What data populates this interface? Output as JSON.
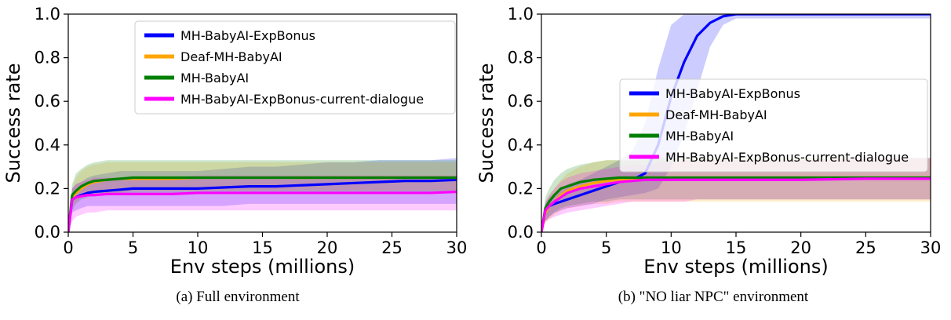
{
  "captions": [
    "(a) Full environment",
    "(b) \"NO liar NPC\" environment"
  ],
  "chart_data": [
    {
      "type": "line",
      "title": "",
      "xlabel": "Env steps (millions)",
      "ylabel": "Success rate",
      "xlim": [
        0,
        30
      ],
      "ylim": [
        0,
        1.0
      ],
      "xticks": [
        "0",
        "5",
        "10",
        "15",
        "20",
        "25",
        "30"
      ],
      "yticks": [
        "0.0",
        "0.2",
        "0.4",
        "0.6",
        "0.8",
        "1.0"
      ],
      "grid": false,
      "legend_position": "top-right",
      "x": [
        0,
        0.3,
        0.6,
        1,
        1.5,
        2,
        3,
        4,
        5,
        6,
        7,
        8,
        10,
        12,
        14,
        16,
        18,
        20,
        22,
        24,
        26,
        28,
        30
      ],
      "series": [
        {
          "name": "MH-BabyAI-ExpBonus",
          "color": "#0000ff",
          "values": [
            0.0,
            0.15,
            0.16,
            0.17,
            0.18,
            0.185,
            0.19,
            0.195,
            0.2,
            0.2,
            0.2,
            0.2,
            0.2,
            0.205,
            0.21,
            0.21,
            0.215,
            0.22,
            0.225,
            0.23,
            0.235,
            0.235,
            0.24
          ],
          "lower": [
            0.0,
            0.09,
            0.1,
            0.11,
            0.12,
            0.12,
            0.12,
            0.12,
            0.12,
            0.12,
            0.12,
            0.12,
            0.12,
            0.12,
            0.13,
            0.13,
            0.13,
            0.13,
            0.13,
            0.13,
            0.13,
            0.13,
            0.13
          ],
          "upper": [
            0.0,
            0.2,
            0.22,
            0.23,
            0.25,
            0.26,
            0.27,
            0.28,
            0.28,
            0.28,
            0.28,
            0.28,
            0.28,
            0.29,
            0.3,
            0.3,
            0.31,
            0.32,
            0.32,
            0.33,
            0.33,
            0.33,
            0.34
          ]
        },
        {
          "name": "Deaf-MH-BabyAI",
          "color": "#ffa500",
          "values": [
            0.0,
            0.16,
            0.18,
            0.2,
            0.22,
            0.23,
            0.24,
            0.245,
            0.245,
            0.245,
            0.245,
            0.245,
            0.25,
            0.25,
            0.25,
            0.25,
            0.25,
            0.25,
            0.25,
            0.25,
            0.25,
            0.25,
            0.25
          ],
          "lower": [
            0.0,
            0.12,
            0.14,
            0.16,
            0.17,
            0.18,
            0.18,
            0.18,
            0.19,
            0.19,
            0.19,
            0.19,
            0.19,
            0.19,
            0.19,
            0.19,
            0.19,
            0.19,
            0.19,
            0.19,
            0.19,
            0.19,
            0.19
          ],
          "upper": [
            0.0,
            0.2,
            0.25,
            0.28,
            0.3,
            0.31,
            0.32,
            0.32,
            0.32,
            0.32,
            0.32,
            0.32,
            0.32,
            0.32,
            0.32,
            0.32,
            0.32,
            0.32,
            0.32,
            0.32,
            0.32,
            0.32,
            0.32
          ]
        },
        {
          "name": "MH-BabyAI",
          "color": "#008000",
          "values": [
            0.0,
            0.17,
            0.19,
            0.21,
            0.225,
            0.235,
            0.24,
            0.245,
            0.25,
            0.25,
            0.25,
            0.25,
            0.25,
            0.25,
            0.25,
            0.25,
            0.25,
            0.25,
            0.25,
            0.25,
            0.25,
            0.25,
            0.25
          ],
          "lower": [
            0.0,
            0.1,
            0.13,
            0.15,
            0.16,
            0.17,
            0.18,
            0.18,
            0.18,
            0.18,
            0.18,
            0.18,
            0.18,
            0.18,
            0.18,
            0.18,
            0.18,
            0.18,
            0.18,
            0.18,
            0.18,
            0.18,
            0.18
          ],
          "upper": [
            0.0,
            0.22,
            0.27,
            0.29,
            0.31,
            0.32,
            0.33,
            0.33,
            0.33,
            0.33,
            0.33,
            0.33,
            0.33,
            0.33,
            0.33,
            0.33,
            0.33,
            0.33,
            0.33,
            0.33,
            0.33,
            0.33,
            0.33
          ]
        },
        {
          "name": "MH-BabyAI-ExpBonus-current-dialogue",
          "color": "#ff00ff",
          "values": [
            0.0,
            0.15,
            0.16,
            0.165,
            0.17,
            0.17,
            0.175,
            0.175,
            0.175,
            0.175,
            0.175,
            0.175,
            0.18,
            0.18,
            0.18,
            0.18,
            0.18,
            0.18,
            0.18,
            0.18,
            0.18,
            0.18,
            0.185
          ],
          "lower": [
            0.0,
            0.05,
            0.07,
            0.08,
            0.09,
            0.09,
            0.1,
            0.1,
            0.1,
            0.1,
            0.1,
            0.1,
            0.1,
            0.1,
            0.1,
            0.1,
            0.1,
            0.1,
            0.1,
            0.1,
            0.1,
            0.1,
            0.1
          ],
          "upper": [
            0.0,
            0.2,
            0.22,
            0.23,
            0.24,
            0.25,
            0.25,
            0.25,
            0.25,
            0.25,
            0.25,
            0.25,
            0.26,
            0.26,
            0.26,
            0.26,
            0.26,
            0.26,
            0.26,
            0.26,
            0.26,
            0.26,
            0.26
          ]
        }
      ]
    },
    {
      "type": "line",
      "title": "",
      "xlabel": "Env steps (millions)",
      "ylabel": "Success rate",
      "xlim": [
        0,
        30
      ],
      "ylim": [
        0,
        1.0
      ],
      "xticks": [
        "0",
        "5",
        "10",
        "15",
        "20",
        "25",
        "30"
      ],
      "yticks": [
        "0.0",
        "0.2",
        "0.4",
        "0.6",
        "0.8",
        "1.0"
      ],
      "grid": false,
      "legend_position": "center-right",
      "x": [
        0,
        0.3,
        0.6,
        1,
        1.5,
        2,
        3,
        4,
        5,
        6,
        7,
        8,
        9,
        10,
        11,
        12,
        13,
        14,
        15,
        17,
        20,
        25,
        30
      ],
      "series": [
        {
          "name": "MH-BabyAI-ExpBonus",
          "color": "#0000ff",
          "values": [
            0.0,
            0.1,
            0.12,
            0.13,
            0.14,
            0.15,
            0.17,
            0.19,
            0.21,
            0.23,
            0.24,
            0.27,
            0.4,
            0.62,
            0.78,
            0.9,
            0.96,
            0.99,
            1.0,
            1.0,
            1.0,
            1.0,
            1.0
          ],
          "lower": [
            0.0,
            0.05,
            0.07,
            0.09,
            0.1,
            0.11,
            0.12,
            0.13,
            0.15,
            0.16,
            0.17,
            0.18,
            0.2,
            0.3,
            0.45,
            0.65,
            0.85,
            0.95,
            0.98,
            0.98,
            0.98,
            0.98,
            0.98
          ],
          "upper": [
            0.0,
            0.13,
            0.16,
            0.18,
            0.2,
            0.22,
            0.24,
            0.27,
            0.3,
            0.33,
            0.37,
            0.5,
            0.75,
            0.95,
            1.0,
            1.0,
            1.0,
            1.0,
            1.0,
            1.0,
            1.0,
            1.0,
            1.0
          ]
        },
        {
          "name": "Deaf-MH-BabyAI",
          "color": "#ffa500",
          "values": [
            0.0,
            0.09,
            0.12,
            0.14,
            0.17,
            0.19,
            0.21,
            0.225,
            0.235,
            0.24,
            0.245,
            0.25,
            0.25,
            0.25,
            0.25,
            0.25,
            0.25,
            0.25,
            0.25,
            0.25,
            0.25,
            0.25,
            0.25
          ],
          "lower": [
            0.0,
            0.04,
            0.06,
            0.08,
            0.1,
            0.11,
            0.12,
            0.13,
            0.13,
            0.14,
            0.14,
            0.14,
            0.14,
            0.14,
            0.14,
            0.14,
            0.14,
            0.14,
            0.14,
            0.14,
            0.14,
            0.14,
            0.14
          ],
          "upper": [
            0.0,
            0.13,
            0.17,
            0.2,
            0.24,
            0.27,
            0.3,
            0.32,
            0.33,
            0.33,
            0.33,
            0.33,
            0.34,
            0.34,
            0.34,
            0.34,
            0.34,
            0.34,
            0.34,
            0.34,
            0.34,
            0.34,
            0.34
          ]
        },
        {
          "name": "MH-BabyAI",
          "color": "#008000",
          "values": [
            0.0,
            0.11,
            0.14,
            0.17,
            0.2,
            0.21,
            0.23,
            0.24,
            0.245,
            0.25,
            0.25,
            0.25,
            0.25,
            0.25,
            0.25,
            0.25,
            0.25,
            0.25,
            0.25,
            0.25,
            0.25,
            0.25,
            0.25
          ],
          "lower": [
            0.0,
            0.05,
            0.07,
            0.09,
            0.11,
            0.12,
            0.13,
            0.14,
            0.14,
            0.15,
            0.15,
            0.15,
            0.15,
            0.15,
            0.15,
            0.15,
            0.15,
            0.15,
            0.15,
            0.15,
            0.15,
            0.15,
            0.15
          ],
          "upper": [
            0.0,
            0.16,
            0.2,
            0.24,
            0.27,
            0.29,
            0.31,
            0.32,
            0.33,
            0.33,
            0.33,
            0.33,
            0.34,
            0.34,
            0.34,
            0.34,
            0.34,
            0.34,
            0.34,
            0.34,
            0.34,
            0.34,
            0.34
          ]
        },
        {
          "name": "MH-BabyAI-ExpBonus-current-dialogue",
          "color": "#ff00ff",
          "values": [
            0.0,
            0.1,
            0.12,
            0.14,
            0.16,
            0.18,
            0.2,
            0.21,
            0.22,
            0.23,
            0.235,
            0.24,
            0.24,
            0.24,
            0.24,
            0.24,
            0.24,
            0.24,
            0.24,
            0.24,
            0.24,
            0.245,
            0.245
          ],
          "lower": [
            0.0,
            0.05,
            0.06,
            0.07,
            0.08,
            0.09,
            0.1,
            0.11,
            0.12,
            0.13,
            0.14,
            0.14,
            0.14,
            0.14,
            0.14,
            0.15,
            0.15,
            0.15,
            0.15,
            0.15,
            0.15,
            0.15,
            0.15
          ],
          "upper": [
            0.0,
            0.14,
            0.17,
            0.2,
            0.23,
            0.25,
            0.27,
            0.28,
            0.29,
            0.3,
            0.31,
            0.31,
            0.32,
            0.32,
            0.33,
            0.33,
            0.33,
            0.33,
            0.33,
            0.33,
            0.33,
            0.34,
            0.34
          ]
        }
      ]
    }
  ]
}
